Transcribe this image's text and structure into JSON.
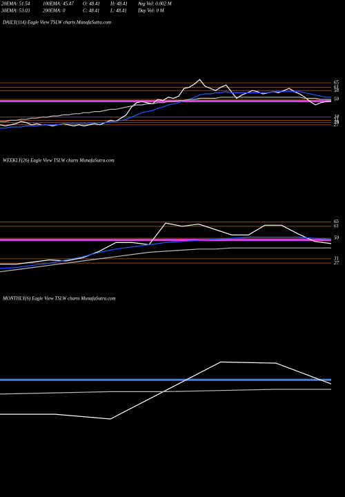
{
  "header": {
    "rows": [
      [
        "20EMA: 51.54",
        "100EMA: 45.47",
        "O: 48.41",
        "H: 48.41",
        "Avg Vol: 0.002 M"
      ],
      [
        "30EMA: 53.03",
        "200EMA: 0",
        "C: 48.41",
        "L: 48.41",
        "Day Vol: 0 M"
      ]
    ]
  },
  "chart_data": [
    {
      "type": "line",
      "title": "DAILY(114) Eagle  View  TSLW charts MunafaSutra.com",
      "ylim": [
        15,
        115
      ],
      "yticks": [
        65,
        61,
        58,
        50,
        34,
        31,
        29,
        27
      ],
      "grid": true,
      "grid_color": "#8b4a1c",
      "hlines": [
        {
          "value": 48.41,
          "color": "#e040e0"
        }
      ],
      "series": [
        {
          "color": "#ffffff",
          "values": [
            27,
            26,
            27,
            28,
            30,
            29,
            27,
            28,
            27,
            27,
            26,
            27,
            28,
            27,
            26,
            27,
            26,
            27,
            28,
            27,
            29,
            31,
            30,
            33,
            36,
            43,
            47,
            48,
            47,
            46,
            50,
            49,
            52,
            51,
            53,
            60,
            61,
            64,
            68,
            62,
            60,
            58,
            61,
            63,
            57,
            51,
            54,
            56,
            58,
            57,
            55,
            56,
            57,
            56,
            58,
            60,
            57,
            55,
            52,
            48,
            45,
            47,
            48,
            48.41
          ]
        },
        {
          "color": "#1e5bff",
          "values": [
            24,
            24,
            25,
            25,
            25,
            26,
            26,
            26,
            27,
            27,
            27,
            27,
            28,
            28,
            28,
            28,
            28,
            28,
            29,
            29,
            29,
            30,
            30,
            31,
            32,
            34,
            36,
            38,
            39,
            40,
            42,
            43,
            45,
            46,
            47,
            49,
            50,
            52,
            54,
            55,
            55,
            56,
            56,
            57,
            56,
            56,
            56,
            56,
            56,
            56,
            56,
            56,
            57,
            57,
            57,
            57,
            57,
            57,
            56,
            55,
            54,
            53,
            52,
            52
          ]
        },
        {
          "color": "#bbbbbb",
          "values": [
            30,
            30,
            31,
            31,
            32,
            32,
            33,
            33,
            34,
            34,
            35,
            35,
            36,
            36,
            37,
            37,
            38,
            38,
            39,
            39,
            40,
            41,
            41,
            42,
            43,
            44,
            45,
            45,
            46,
            46,
            47,
            47,
            48,
            48,
            49,
            49,
            50,
            50,
            51,
            51,
            51,
            51,
            52,
            52,
            52,
            52,
            52,
            52,
            52,
            52,
            52,
            52,
            52,
            52,
            52,
            52,
            52,
            52,
            51,
            51,
            51,
            50,
            50,
            50
          ]
        }
      ]
    },
    {
      "type": "line",
      "title": "WEEKLY(26) Eagle  View  TSLW charts MunafaSutra.com",
      "ylim": [
        15,
        117
      ],
      "yticks": [
        65,
        61,
        50,
        31,
        27
      ],
      "grid": true,
      "grid_color": "#8b4a1c",
      "hlines": [
        {
          "value": 48.41,
          "color": "#e040e0"
        }
      ],
      "series": [
        {
          "color": "#ffffff",
          "values": [
            26,
            26,
            28,
            30,
            29,
            32,
            38,
            46,
            46,
            44,
            64,
            61,
            63,
            58,
            53,
            53,
            62,
            62,
            54,
            47,
            45
          ]
        },
        {
          "color": "#1e5bff",
          "values": [
            22,
            23,
            25,
            27,
            30,
            33,
            37,
            40,
            42,
            44,
            46,
            47,
            48,
            49,
            50,
            51,
            51,
            51,
            51,
            50,
            49
          ]
        },
        {
          "color": "#bbbbbb",
          "values": [
            19,
            21,
            23,
            25,
            27,
            29,
            31,
            33,
            35,
            37,
            38,
            39,
            40,
            40,
            41,
            41,
            41,
            41,
            41,
            41,
            41
          ]
        }
      ]
    },
    {
      "type": "line",
      "title": "MONTHLY(6) Eagle  View  TSLW charts MunafaSutra.com",
      "ylim": [
        -37,
        114
      ],
      "yticks": [],
      "grid": false,
      "grid_color": "#8b4a1c",
      "hlines": [
        {
          "value": 50,
          "color": "#4a7fe0"
        }
      ],
      "series": [
        {
          "color": "#ffffff",
          "values": [
            21,
            21,
            17,
            41,
            65,
            64,
            46.5
          ]
        },
        {
          "color": "#bbbbbb",
          "values": [
            38,
            39,
            40,
            40,
            41,
            42,
            42
          ]
        }
      ]
    }
  ]
}
